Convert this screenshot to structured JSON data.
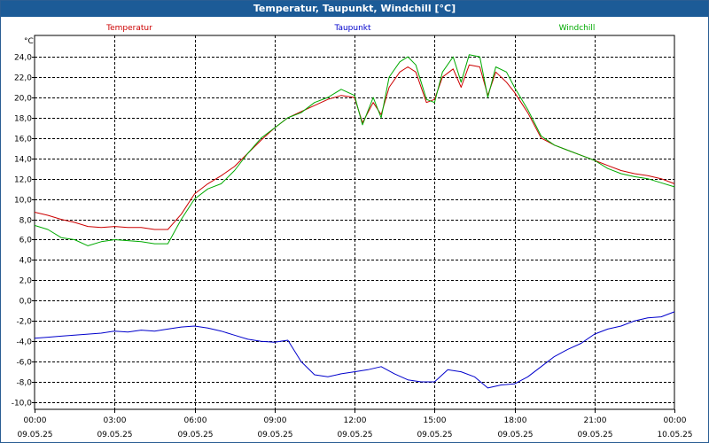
{
  "chart_data": {
    "type": "line",
    "title": "Temperatur, Taupunkt, Windchill [°C]",
    "ylabel": "°C",
    "ylim": [
      -10,
      25
    ],
    "yticks": [
      24,
      22,
      20,
      18,
      16,
      14,
      12,
      10,
      8,
      6,
      4,
      2,
      0,
      -2,
      -4,
      -6,
      -8,
      -10
    ],
    "ytick_labels": [
      "24,0",
      "22,0",
      "20,0",
      "18,0",
      "16,0",
      "14,0",
      "12,0",
      "10,0",
      "8,0",
      "6,0",
      "4,0",
      "2,0",
      "0,0",
      "-2,0",
      "-4,0",
      "-6,0",
      "-8,0",
      "-10,0"
    ],
    "xlim": [
      0,
      24
    ],
    "x_ticks": [
      {
        "hour": 0,
        "time": "00:00",
        "date": "09.05.25"
      },
      {
        "hour": 3,
        "time": "03:00",
        "date": "09.05.25"
      },
      {
        "hour": 6,
        "time": "06:00",
        "date": "09.05.25"
      },
      {
        "hour": 9,
        "time": "09:00",
        "date": "09.05.25"
      },
      {
        "hour": 12,
        "time": "12:00",
        "date": "09.05.25"
      },
      {
        "hour": 15,
        "time": "15:00",
        "date": "09.05.25"
      },
      {
        "hour": 18,
        "time": "18:00",
        "date": "09.05.25"
      },
      {
        "hour": 21,
        "time": "21:00",
        "date": "09.05.25"
      },
      {
        "hour": 24,
        "time": "00:00",
        "date": "10.05.25"
      }
    ],
    "grid": true,
    "series": [
      {
        "name": "Temperatur",
        "color": "#cc0000",
        "x": [
          0,
          0.5,
          1,
          1.5,
          2,
          2.5,
          3,
          3.5,
          4,
          4.5,
          5,
          5.5,
          6,
          6.5,
          7,
          7.5,
          8,
          8.5,
          9,
          9.5,
          10,
          10.5,
          11,
          11.5,
          12,
          12.3,
          12.7,
          13,
          13.3,
          13.7,
          14,
          14.3,
          14.7,
          15,
          15.3,
          15.7,
          16,
          16.3,
          16.7,
          17,
          17.3,
          17.7,
          18,
          18.5,
          19,
          19.5,
          20,
          20.5,
          21,
          21.5,
          22,
          22.5,
          23,
          23.5,
          24
        ],
        "y": [
          8.7,
          8.4,
          8.0,
          7.7,
          7.3,
          7.2,
          7.3,
          7.2,
          7.2,
          7.0,
          7.0,
          8.5,
          10.5,
          11.5,
          12.3,
          13.2,
          14.5,
          15.8,
          17.0,
          18.0,
          18.6,
          19.2,
          19.8,
          20.2,
          20.0,
          17.5,
          19.5,
          18.3,
          21.0,
          22.5,
          23.0,
          22.5,
          19.5,
          19.8,
          22.0,
          22.8,
          21.0,
          23.2,
          23.0,
          20.2,
          22.5,
          21.5,
          20.5,
          18.5,
          16.0,
          15.3,
          14.8,
          14.3,
          13.8,
          13.3,
          12.8,
          12.5,
          12.3,
          12.0,
          11.5
        ]
      },
      {
        "name": "Taupunkt",
        "color": "#0000cc",
        "x": [
          0,
          0.5,
          1,
          1.5,
          2,
          2.5,
          3,
          3.5,
          4,
          4.5,
          5,
          5.5,
          6,
          6.5,
          7,
          7.5,
          8,
          8.5,
          9,
          9.5,
          10,
          10.5,
          11,
          11.5,
          12,
          12.5,
          13,
          13.5,
          14,
          14.5,
          15,
          15.5,
          16,
          16.5,
          17,
          17.5,
          18,
          18.5,
          19,
          19.5,
          20,
          20.5,
          21,
          21.5,
          22,
          22.5,
          23,
          23.5,
          24
        ],
        "y": [
          -3.7,
          -3.6,
          -3.5,
          -3.4,
          -3.3,
          -3.2,
          -3.0,
          -3.1,
          -2.9,
          -3.0,
          -2.8,
          -2.6,
          -2.5,
          -2.7,
          -3.0,
          -3.4,
          -3.8,
          -4.0,
          -4.1,
          -3.9,
          -6.0,
          -7.3,
          -7.5,
          -7.2,
          -7.0,
          -6.8,
          -6.5,
          -7.2,
          -7.8,
          -8.0,
          -8.0,
          -6.8,
          -7.0,
          -7.5,
          -8.6,
          -8.3,
          -8.2,
          -7.5,
          -6.5,
          -5.5,
          -4.8,
          -4.2,
          -3.3,
          -2.8,
          -2.5,
          -2.0,
          -1.7,
          -1.6,
          -1.1
        ]
      },
      {
        "name": "Windchill",
        "color": "#00aa00",
        "x": [
          0,
          0.5,
          1,
          1.5,
          2,
          2.5,
          3,
          3.5,
          4,
          4.5,
          5,
          5.5,
          6,
          6.5,
          7,
          7.5,
          8,
          8.5,
          9,
          9.5,
          10,
          10.5,
          11,
          11.5,
          12,
          12.3,
          12.7,
          13,
          13.3,
          13.7,
          14,
          14.3,
          14.7,
          15,
          15.3,
          15.7,
          16,
          16.3,
          16.7,
          17,
          17.3,
          17.7,
          18,
          18.5,
          19,
          19.5,
          20,
          20.5,
          21,
          21.5,
          22,
          22.5,
          23,
          23.5,
          24
        ],
        "y": [
          7.4,
          7.0,
          6.2,
          6.0,
          5.4,
          5.8,
          6.0,
          5.9,
          5.8,
          5.6,
          5.6,
          8.0,
          10.0,
          11.0,
          11.5,
          12.8,
          14.5,
          16.0,
          17.0,
          18.0,
          18.5,
          19.5,
          20.0,
          20.8,
          20.2,
          17.3,
          20.0,
          18.0,
          22.0,
          23.5,
          24.0,
          23.2,
          19.8,
          19.5,
          22.5,
          24.0,
          21.5,
          24.2,
          24.0,
          20.0,
          23.0,
          22.5,
          21.0,
          18.8,
          16.2,
          15.3,
          14.8,
          14.3,
          13.8,
          13.0,
          12.5,
          12.2,
          12.0,
          11.6,
          11.2
        ]
      }
    ]
  }
}
